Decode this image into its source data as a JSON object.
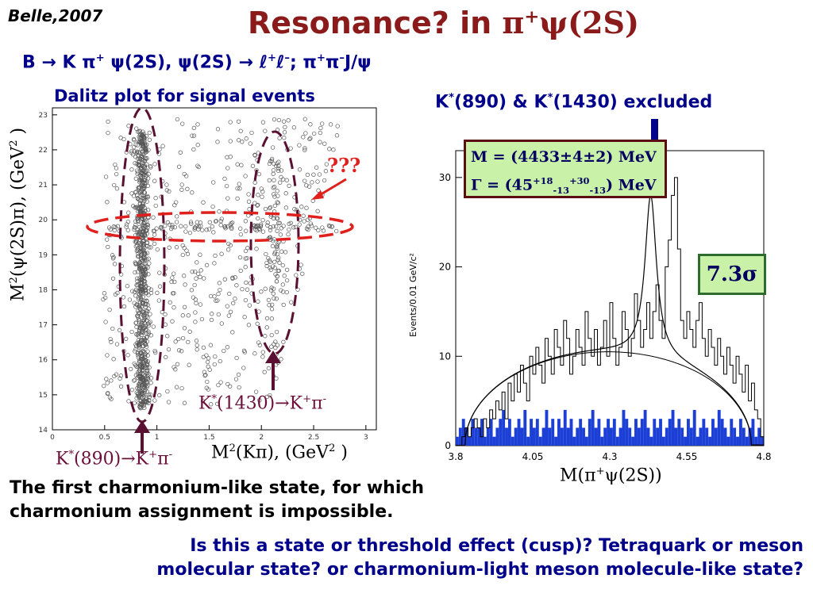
{
  "header": {
    "source": "Belle,2007",
    "title_prefix": "Resonance? in ",
    "title_particle": "π",
    "title_charge": "+",
    "title_state": "ψ(2S)"
  },
  "decay": {
    "text_a": "B → K π",
    "sup_a": "+",
    "text_b": " ψ(2S),  ψ(2S) → ℓ",
    "sup_b": "+",
    "text_c": "ℓ",
    "sup_c": "–",
    "text_d": "; π",
    "sup_d": "+",
    "text_e": "π",
    "sup_e": "–",
    "text_f": "J/ψ"
  },
  "dalitz": {
    "title": "Dalitz plot for signal events",
    "ylabel_a": "M",
    "ylabel_sup": "2",
    "ylabel_b": "(ψ(2S)π), (GeV",
    "ylabel_sup2": "2",
    "ylabel_c": " )",
    "xlabel_a": "M",
    "xlabel_sup": "2",
    "xlabel_b": "(Kπ), (GeV",
    "xlabel_sup2": "2",
    "xlabel_c": " )",
    "yticks": [
      "14",
      "15",
      "16",
      "17",
      "18",
      "19",
      "20",
      "21",
      "22",
      "23"
    ],
    "xticks": [
      "0",
      "0.5",
      "1",
      "1.5",
      "2",
      "2.5",
      "3"
    ],
    "annotation_unknown": "???",
    "label_k1430_a": "K",
    "label_k1430_star": "*",
    "label_k1430_b": "(1430)→K",
    "label_k1430_sup1": "+",
    "label_k1430_c": "π",
    "label_k1430_sup2": "-",
    "label_k890_a": "K",
    "label_k890_star": "*",
    "label_k890_b": "(890)→K",
    "label_k890_sup1": "+",
    "label_k890_c": "π",
    "label_k890_sup2": "-",
    "colors": {
      "vertical_band": "#5a1030",
      "horizontal_band": "#e0201c",
      "arrows": "#5a1030"
    }
  },
  "mass_plot": {
    "excluded_label_a": "K",
    "excluded_label_star1": "*",
    "excluded_label_b": "(890) & K",
    "excluded_label_star2": "*",
    "excluded_label_c": "(1430) excluded",
    "fit_mass_label": "M = (4433±4±2) MeV",
    "fit_width_prefix": "Γ = (45",
    "fit_width_sup1": "+18",
    "fit_width_sub1": "-13",
    "fit_width_sup2": "+30",
    "fit_width_sub2": "-13",
    "fit_width_suffix": ") MeV",
    "significance": "7.3σ",
    "xlabel_a": "M(π",
    "xlabel_sup": "+",
    "xlabel_b": "ψ(2S))",
    "ylabel": "Events/0.01 GeV/c²",
    "yticks": [
      "0",
      "10",
      "20",
      "30"
    ],
    "xticks": [
      "3.8",
      "4.05",
      "4.3",
      "4.55",
      "4.8"
    ]
  },
  "chart_data": {
    "type": "bar",
    "xlim": [
      3.8,
      4.8
    ],
    "ylim": [
      0,
      33
    ],
    "bin_width": 0.01,
    "x_start": 3.8,
    "series": [
      {
        "values": [
          0,
          0,
          1,
          2,
          1,
          2,
          3,
          2,
          1,
          3,
          2,
          4,
          3,
          5,
          4,
          6,
          3,
          7,
          5,
          8,
          6,
          9,
          7,
          5,
          10,
          8,
          11,
          9,
          7,
          12,
          10,
          8,
          13,
          11,
          9,
          14,
          12,
          8,
          10,
          13,
          11,
          9,
          15,
          12,
          10,
          13,
          9,
          11,
          14,
          10,
          16,
          12,
          9,
          11,
          15,
          13,
          10,
          12,
          17,
          14,
          11,
          13,
          16,
          12,
          15,
          18,
          14,
          12,
          20,
          23,
          28,
          30,
          22,
          14,
          12,
          15,
          13,
          11,
          14,
          16,
          12,
          10,
          13,
          11,
          9,
          12,
          10,
          8,
          11,
          9,
          7,
          10,
          8,
          6,
          9,
          5,
          7,
          4,
          3,
          1
        ]
      },
      {
        "values": [
          1,
          2,
          3,
          2,
          1,
          3,
          2,
          2,
          3,
          1,
          2,
          3,
          1,
          2,
          3,
          4,
          2,
          3,
          1,
          2,
          3,
          2,
          4,
          1,
          3,
          2,
          3,
          1,
          2,
          4,
          2,
          3,
          1,
          3,
          2,
          4,
          2,
          3,
          1,
          2,
          3,
          2,
          1,
          3,
          4,
          2,
          3,
          1,
          2,
          3,
          2,
          3,
          1,
          2,
          4,
          3,
          2,
          1,
          3,
          2,
          3,
          4,
          2,
          1,
          3,
          2,
          3,
          1,
          2,
          3,
          4,
          2,
          3,
          2,
          1,
          3,
          2,
          4,
          1,
          2,
          3,
          2,
          1,
          3,
          2,
          4,
          3,
          2,
          1,
          3,
          2,
          1,
          3,
          2,
          1,
          2,
          3,
          1,
          2,
          1
        ]
      }
    ]
  }
}
